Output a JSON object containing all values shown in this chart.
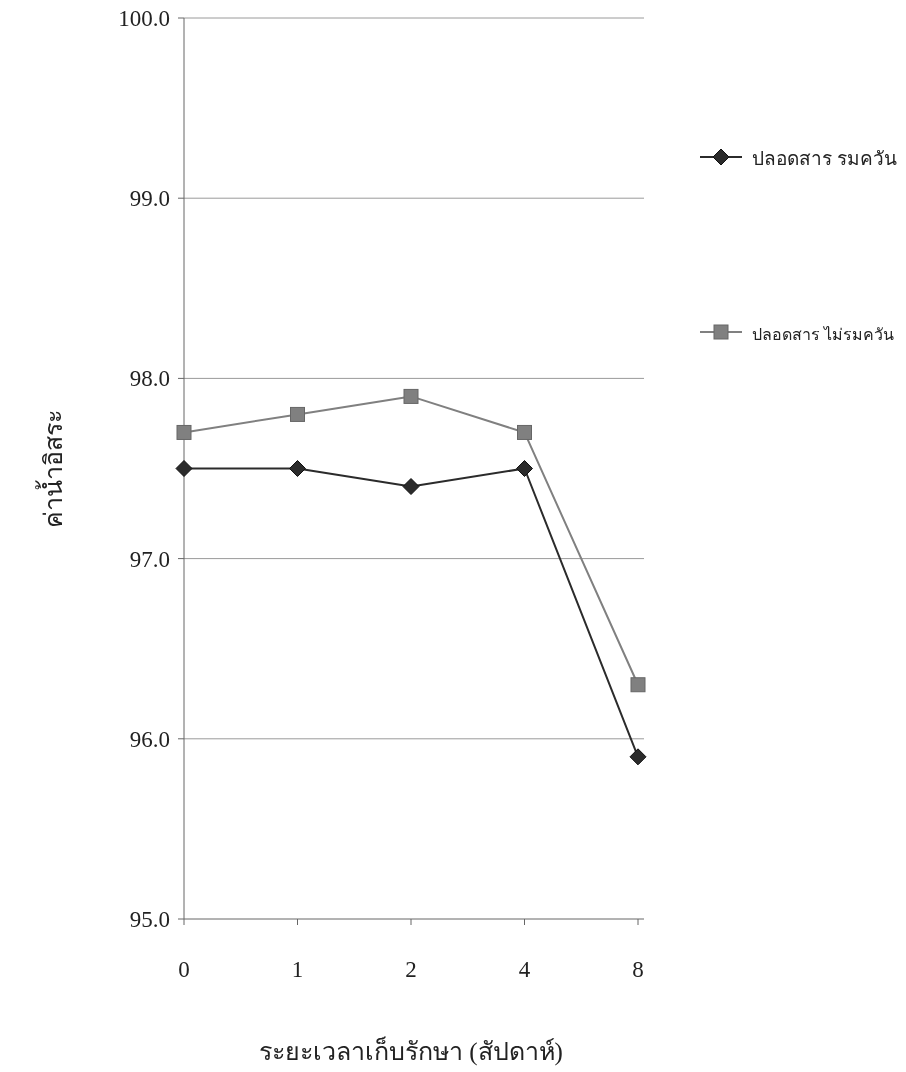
{
  "chart_data": {
    "type": "line",
    "xlabel": "ระยะเวลาเก็บรักษา (สัปดาห์)",
    "ylabel": "ค่าน้ำอิสระ",
    "categories": [
      "0",
      "1",
      "2",
      "4",
      "8"
    ],
    "series": [
      {
        "name": "ปลอดสาร รมควัน",
        "color": "#2b2b2b",
        "marker": "diamond",
        "values": [
          97.5,
          97.5,
          97.4,
          97.5,
          95.9
        ]
      },
      {
        "name": "ปลอดสาร ไม่รมควัน",
        "color": "#808080",
        "marker": "square",
        "values": [
          97.7,
          97.8,
          97.9,
          97.7,
          96.3
        ]
      }
    ],
    "ylim": [
      95,
      100
    ],
    "yticks": [
      {
        "value": 95,
        "label": "95.0"
      },
      {
        "value": 96,
        "label": "96.0"
      },
      {
        "value": 97,
        "label": "97.0"
      },
      {
        "value": 98,
        "label": "98.0"
      },
      {
        "value": 99,
        "label": "99.0"
      },
      {
        "value": 100,
        "label": "100.0"
      }
    ],
    "grid": "y",
    "legend": "right"
  }
}
